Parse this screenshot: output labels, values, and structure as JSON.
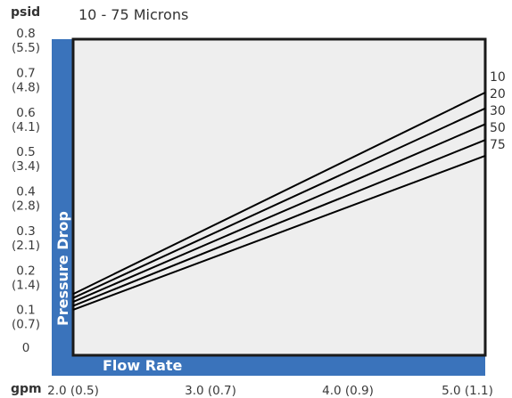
{
  "chart_data": {
    "type": "line",
    "title": "10 - 75 Microns",
    "y_unit_label": "psid",
    "x_unit_label": "gpm",
    "ylabel": "Pressure Drop",
    "xlabel": "Flow Rate",
    "xlim": [
      2.0,
      5.0
    ],
    "ylim": [
      0,
      0.8
    ],
    "x_ticks": [
      {
        "value": 2.0,
        "label": "2.0 (0.5)"
      },
      {
        "value": 3.0,
        "label": "3.0 (0.7)"
      },
      {
        "value": 4.0,
        "label": "4.0 (0.9)"
      },
      {
        "value": 5.0,
        "label": "5.0 (1.1)"
      }
    ],
    "y_ticks": [
      {
        "value": 0.8,
        "line1": "0.8",
        "line2": "(5.5)"
      },
      {
        "value": 0.7,
        "line1": "0.7",
        "line2": "(4.8)"
      },
      {
        "value": 0.6,
        "line1": "0.6",
        "line2": "(4.1)"
      },
      {
        "value": 0.5,
        "line1": "0.5",
        "line2": "(3.4)"
      },
      {
        "value": 0.4,
        "line1": "0.4",
        "line2": "(2.8)"
      },
      {
        "value": 0.3,
        "line1": "0.3",
        "line2": "(2.1)"
      },
      {
        "value": 0.2,
        "line1": "0.2",
        "line2": "(1.4)"
      },
      {
        "value": 0.1,
        "line1": "0.1",
        "line2": "(0.7)"
      },
      {
        "value": 0,
        "line1": "0",
        "line2": ""
      }
    ],
    "series": [
      {
        "name": "10",
        "x": [
          2.0,
          5.0
        ],
        "y": [
          0.155,
          0.665
        ]
      },
      {
        "name": "20",
        "x": [
          2.0,
          5.0
        ],
        "y": [
          0.145,
          0.625
        ]
      },
      {
        "name": "30",
        "x": [
          2.0,
          5.0
        ],
        "y": [
          0.135,
          0.585
        ]
      },
      {
        "name": "50",
        "x": [
          2.0,
          5.0
        ],
        "y": [
          0.125,
          0.545
        ]
      },
      {
        "name": "75",
        "x": [
          2.0,
          5.0
        ],
        "y": [
          0.115,
          0.505
        ]
      }
    ],
    "grid": false,
    "colors": {
      "band": "#3a73bb",
      "plot_background": "#eeeeee",
      "line": "#000000"
    }
  }
}
